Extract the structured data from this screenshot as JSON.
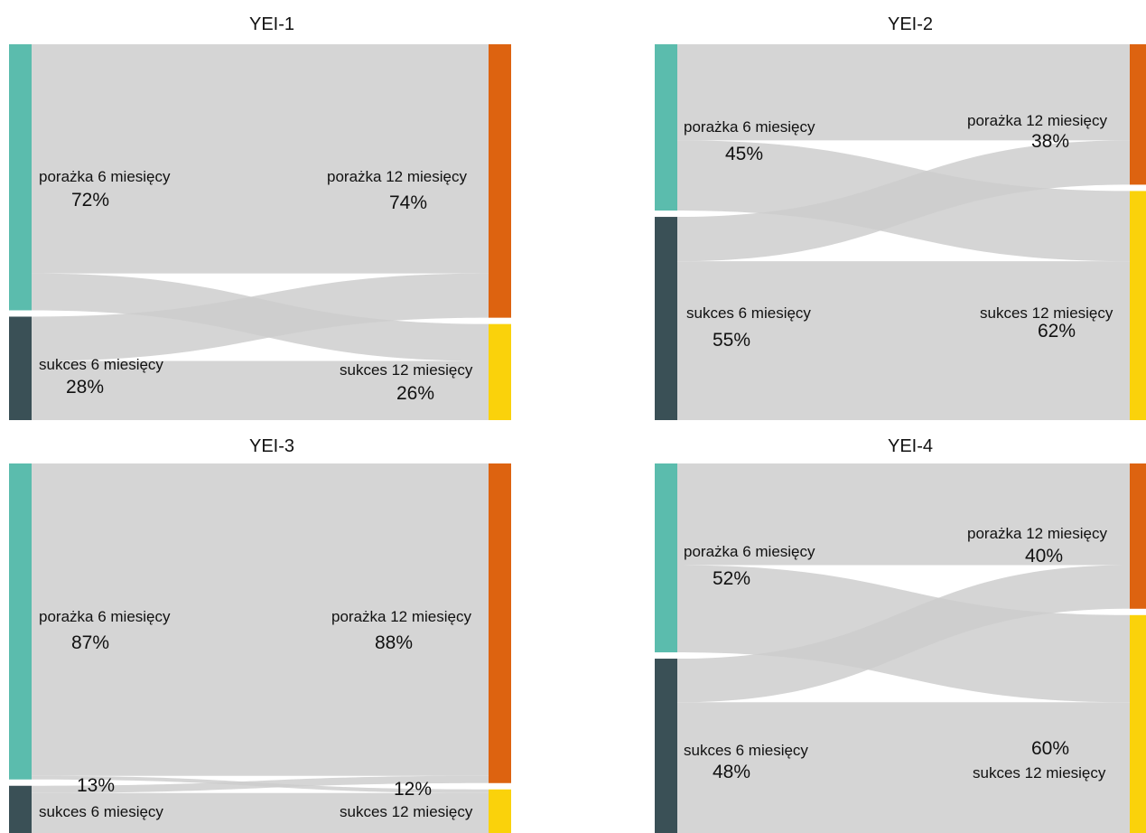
{
  "colors": {
    "fail_6": "#5bbcad",
    "success_6": "#3a5056",
    "fail_12": "#dd6310",
    "success_12": "#fad20b",
    "flow": "#cccccc"
  },
  "chart_data": [
    {
      "type": "sankey",
      "title": "YEI-1",
      "sources": [
        {
          "label": "porażka 6 miesięcy",
          "value": 72,
          "pct_label": "72%"
        },
        {
          "label": "sukces 6 miesięcy",
          "value": 28,
          "pct_label": "28%"
        }
      ],
      "targets": [
        {
          "label": "porażka 12 miesięcy",
          "value": 74,
          "pct_label": "74%"
        },
        {
          "label": "sukces 12 miesięcy",
          "value": 26,
          "pct_label": "26%"
        }
      ],
      "links": [
        {
          "source": 0,
          "target": 0,
          "value": 62
        },
        {
          "source": 0,
          "target": 1,
          "value": 10
        },
        {
          "source": 1,
          "target": 0,
          "value": 12
        },
        {
          "source": 1,
          "target": 1,
          "value": 16
        }
      ]
    },
    {
      "type": "sankey",
      "title": "YEI-2",
      "sources": [
        {
          "label": "porażka 6 miesięcy",
          "value": 45,
          "pct_label": "45%"
        },
        {
          "label": "sukces 6 miesięcy",
          "value": 55,
          "pct_label": "55%"
        }
      ],
      "targets": [
        {
          "label": "porażka 12 miesięcy",
          "value": 38,
          "pct_label": "38%"
        },
        {
          "label": "sukces 12 miesięcy",
          "value": 62,
          "pct_label": "62%"
        }
      ],
      "links": [
        {
          "source": 0,
          "target": 0,
          "value": 26
        },
        {
          "source": 0,
          "target": 1,
          "value": 19
        },
        {
          "source": 1,
          "target": 0,
          "value": 12
        },
        {
          "source": 1,
          "target": 1,
          "value": 43
        }
      ]
    },
    {
      "type": "sankey",
      "title": "YEI-3",
      "sources": [
        {
          "label": "porażka 6 miesięcy",
          "value": 87,
          "pct_label": "87%"
        },
        {
          "label": "sukces 6 miesięcy",
          "value": 13,
          "pct_label": "13%"
        }
      ],
      "targets": [
        {
          "label": "porażka 12 miesięcy",
          "value": 88,
          "pct_label": "88%"
        },
        {
          "label": "sukces 12 miesięcy",
          "value": 12,
          "pct_label": "12%"
        }
      ],
      "links": [
        {
          "source": 0,
          "target": 0,
          "value": 86
        },
        {
          "source": 0,
          "target": 1,
          "value": 1
        },
        {
          "source": 1,
          "target": 0,
          "value": 2
        },
        {
          "source": 1,
          "target": 1,
          "value": 11
        }
      ]
    },
    {
      "type": "sankey",
      "title": "YEI-4",
      "sources": [
        {
          "label": "porażka 6 miesięcy",
          "value": 52,
          "pct_label": "52%"
        },
        {
          "label": "sukces 6 miesięcy",
          "value": 48,
          "pct_label": "48%"
        }
      ],
      "targets": [
        {
          "label": "porażka 12 miesięcy",
          "value": 40,
          "pct_label": "40%"
        },
        {
          "label": "sukces 12 miesięcy",
          "value": 60,
          "pct_label": "60%"
        }
      ],
      "links": [
        {
          "source": 0,
          "target": 0,
          "value": 28
        },
        {
          "source": 0,
          "target": 1,
          "value": 24
        },
        {
          "source": 1,
          "target": 0,
          "value": 12
        },
        {
          "source": 1,
          "target": 1,
          "value": 36
        }
      ]
    }
  ]
}
